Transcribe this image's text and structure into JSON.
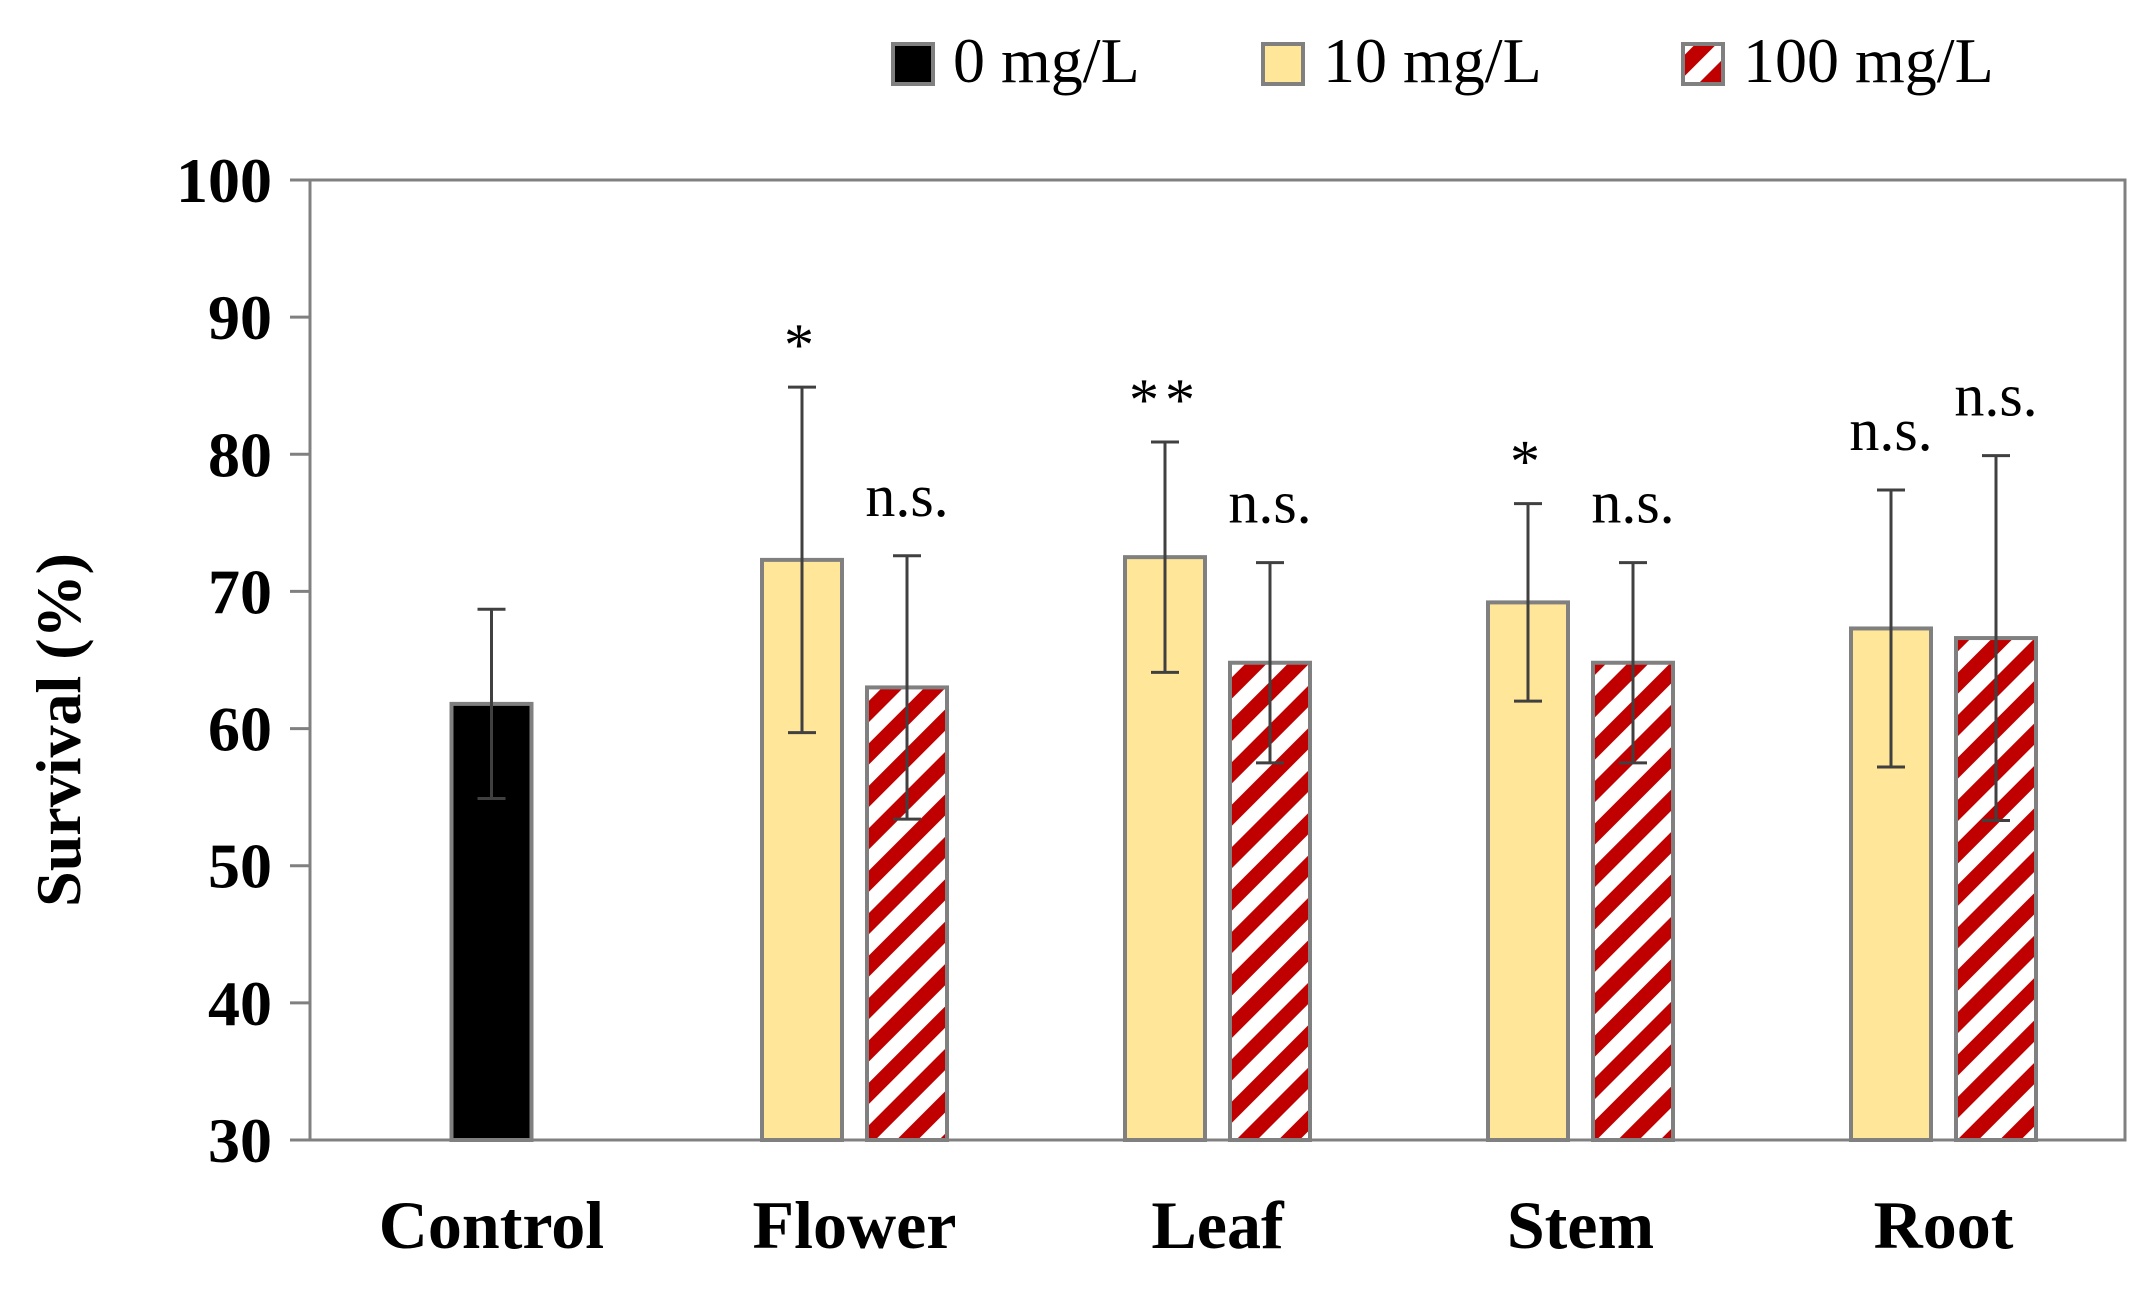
{
  "chart_data": {
    "type": "bar",
    "title": "",
    "xlabel": "",
    "ylabel": "Survival (%)",
    "ylim": [
      30,
      100
    ],
    "yticks": [
      30,
      40,
      50,
      60,
      70,
      80,
      90,
      100
    ],
    "grid": false,
    "legend_position": "top-right",
    "categories": [
      "Control",
      "Flower",
      "Leaf",
      "Stem",
      "Root"
    ],
    "series": [
      {
        "name": "0 mg/L",
        "color": "#000000",
        "pattern": "solid",
        "values": [
          61.8,
          null,
          null,
          null,
          null
        ],
        "errors": [
          6.9,
          null,
          null,
          null,
          null
        ],
        "annotations": [
          "",
          "",
          "",
          "",
          ""
        ]
      },
      {
        "name": "10 mg/L",
        "color": "#FFE699",
        "pattern": "solid",
        "values": [
          null,
          72.3,
          72.5,
          69.2,
          67.3
        ],
        "errors": [
          null,
          12.6,
          8.4,
          7.2,
          10.1
        ],
        "annotations": [
          "",
          "*",
          "**",
          "*",
          "n.s."
        ]
      },
      {
        "name": "100 mg/L",
        "color": "#C00000",
        "pattern": "diagonal-stripes",
        "values": [
          null,
          63.0,
          64.8,
          64.8,
          66.6
        ],
        "errors": [
          null,
          9.6,
          7.3,
          7.3,
          13.3
        ],
        "annotations": [
          "",
          "n.s.",
          "n.s.",
          "n.s.",
          "n.s."
        ]
      }
    ]
  }
}
